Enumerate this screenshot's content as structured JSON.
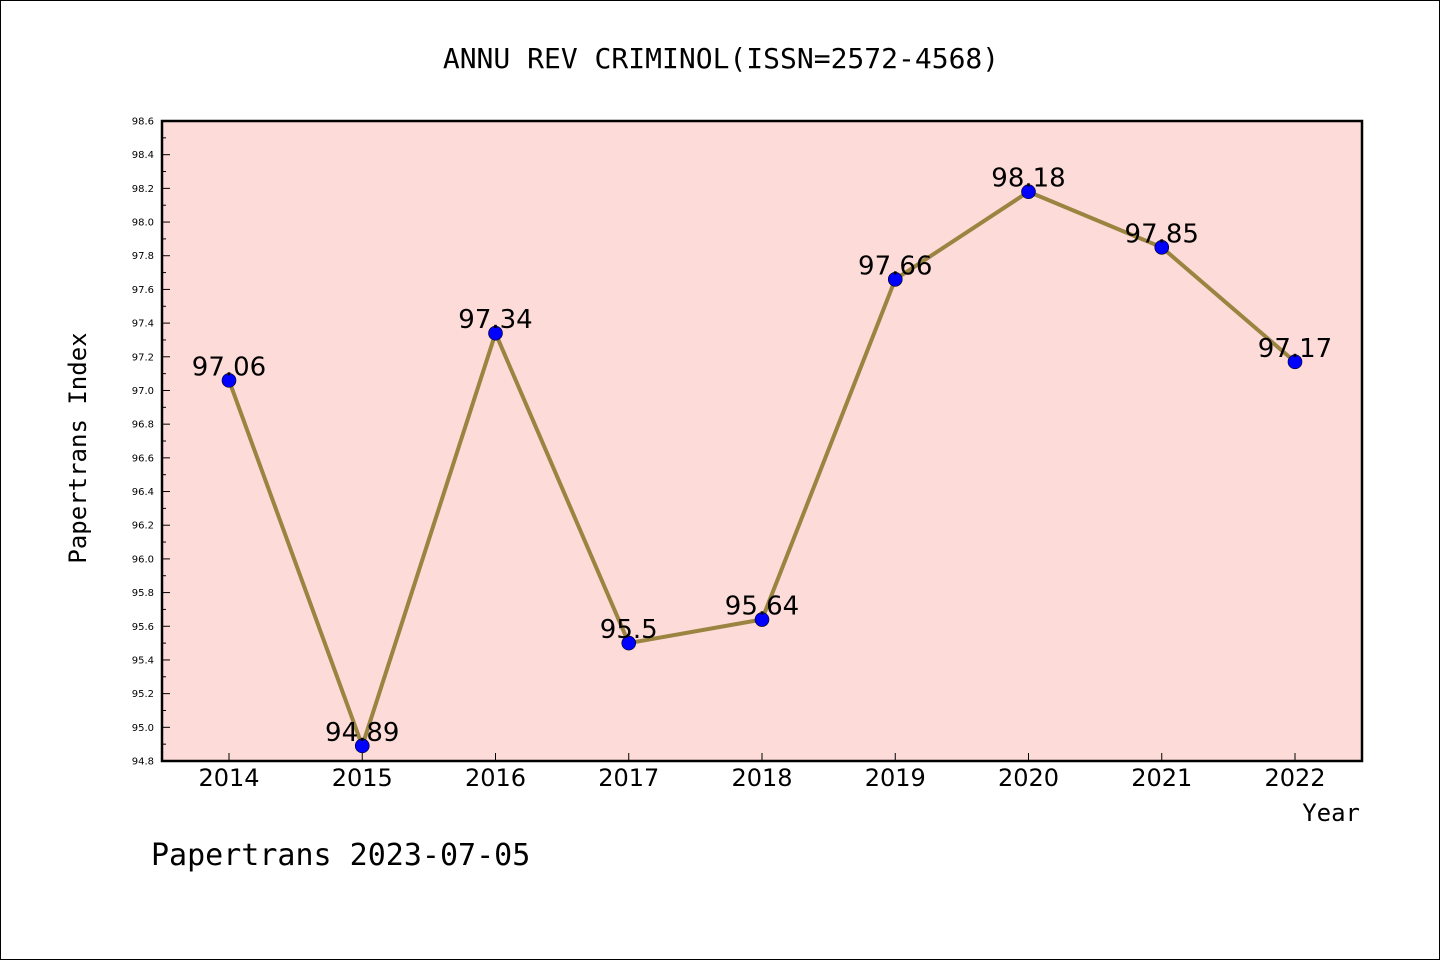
{
  "chart_data": {
    "type": "line",
    "title": "ANNU REV CRIMINOL(ISSN=2572-4568)",
    "xlabel": "Year",
    "ylabel": "Papertrans Index",
    "categories": [
      "2014",
      "2015",
      "2016",
      "2017",
      "2018",
      "2019",
      "2020",
      "2021",
      "2022"
    ],
    "series": [
      {
        "values": [
          97.06,
          94.89,
          97.34,
          95.5,
          95.64,
          97.66,
          98.18,
          97.85,
          97.17
        ]
      }
    ],
    "data_labels": [
      "97.06",
      "94.89",
      "97.34",
      "95.5",
      "95.64",
      "97.66",
      "98.18",
      "97.85",
      "97.17"
    ],
    "ylim": [
      94.8,
      98.6
    ],
    "yticks": [
      "94.8",
      "95.0",
      "95.2",
      "95.4",
      "95.6",
      "95.8",
      "96.0",
      "96.2",
      "96.4",
      "96.6",
      "96.8",
      "97.0",
      "97.2",
      "97.4",
      "97.6",
      "97.8",
      "98.0",
      "98.2",
      "98.4",
      "98.6"
    ],
    "grid": false,
    "colors": {
      "plot_background": "#fddbd9",
      "line": "#9b8340",
      "marker": "#0000ff"
    }
  },
  "footer": "Papertrans 2023-07-05"
}
